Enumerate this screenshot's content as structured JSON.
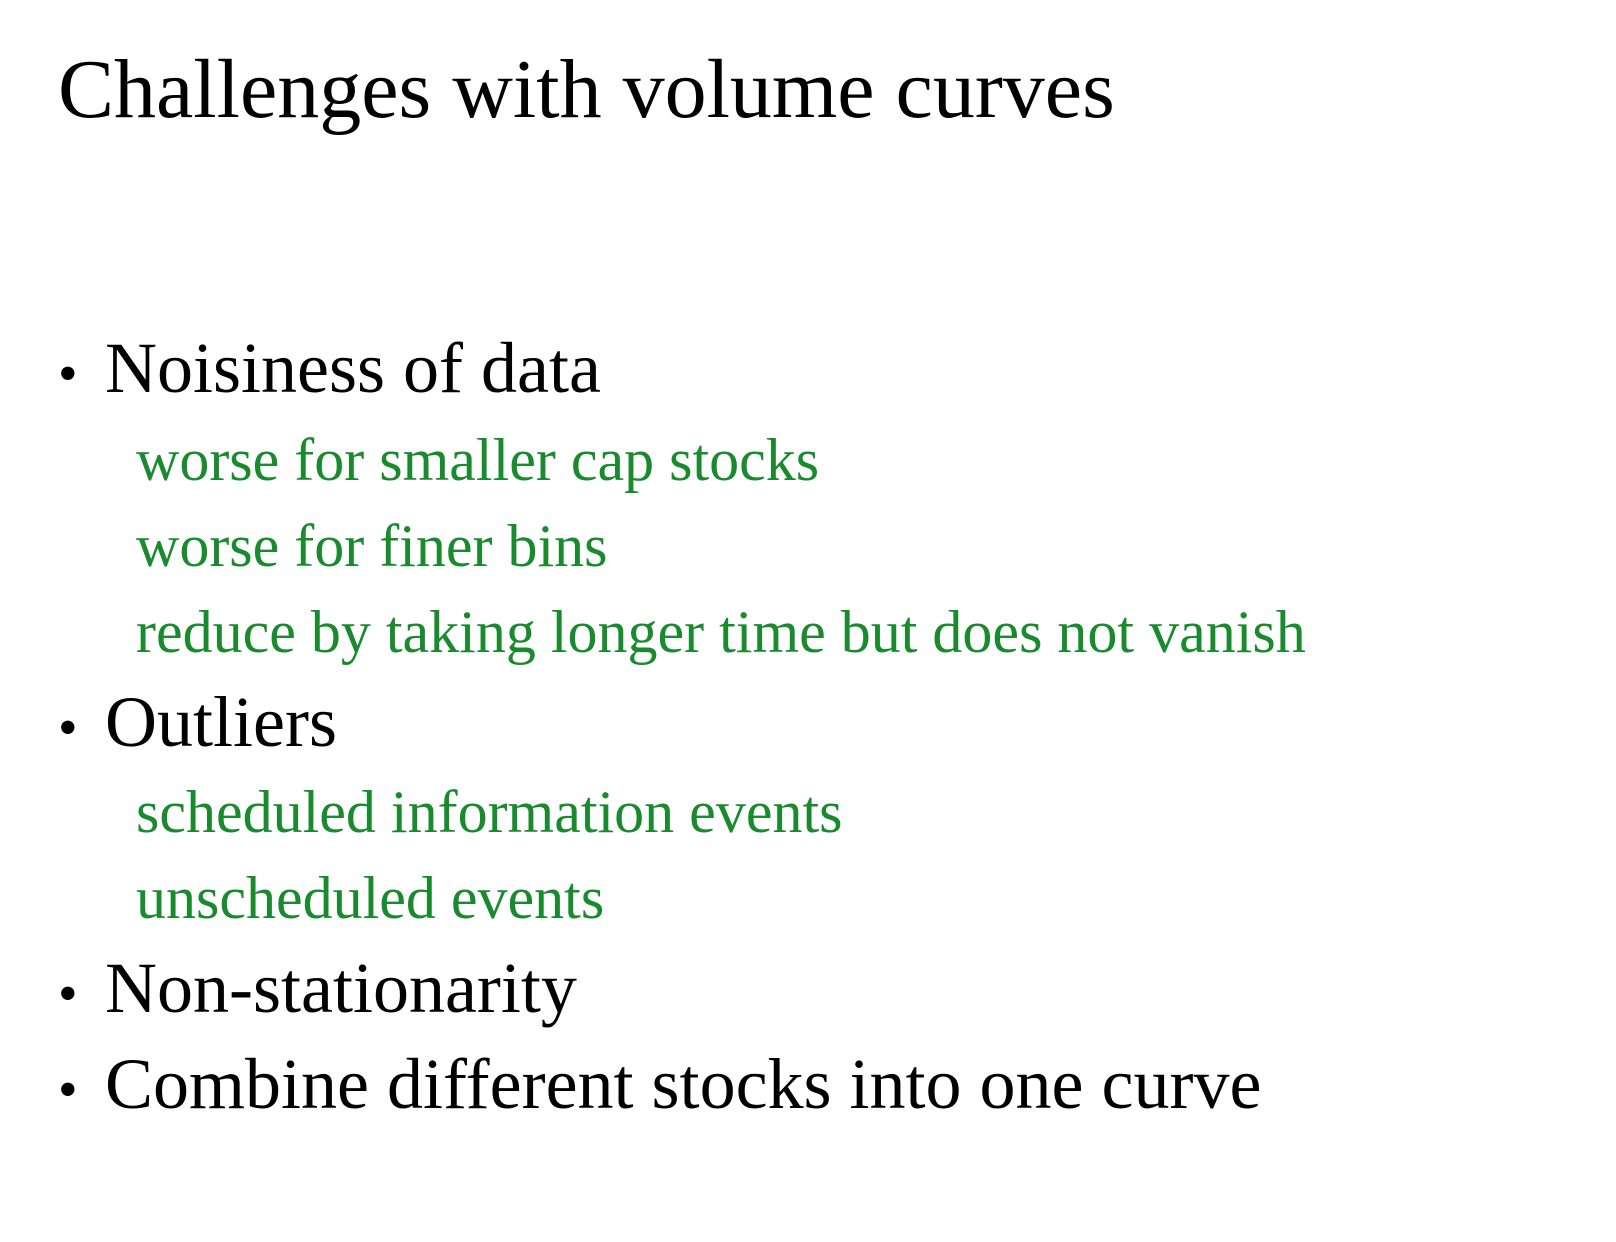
{
  "slide": {
    "title": "Challenges with volume curves",
    "accent_color": "#1a8a2e",
    "bullet_glyph": "•",
    "items": [
      {
        "label": "Noisiness of data",
        "subitems": [
          "worse for smaller cap stocks",
          "worse for finer bins",
          "reduce by taking longer time but does not vanish"
        ]
      },
      {
        "label": "Outliers",
        "subitems": [
          "scheduled information events",
          "unscheduled events"
        ]
      },
      {
        "label": "Non-stationarity",
        "subitems": []
      },
      {
        "label": "Combine different stocks into one curve",
        "subitems": []
      }
    ]
  }
}
